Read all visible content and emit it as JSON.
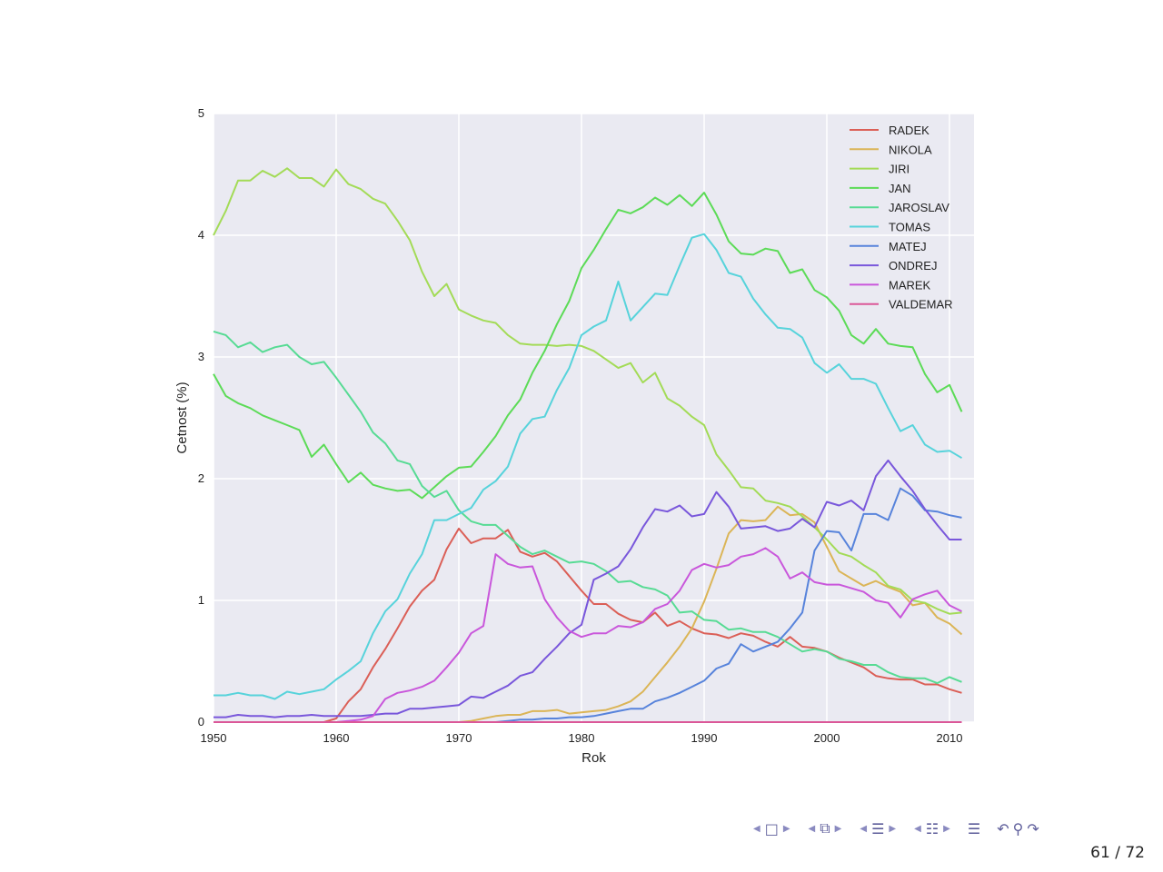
{
  "slide": {
    "page_current": "61",
    "page_sep": "/",
    "page_total": "72"
  },
  "nav": {
    "icons": [
      "frame-back-icon",
      "frame-icon",
      "frame-forward-icon",
      "subsection-back-icon",
      "subsection-icon",
      "subsection-forward-icon",
      "section-back-icon",
      "section-icon",
      "section-forward-icon",
      "presentation-back-icon",
      "presentation-icon",
      "presentation-forward-icon",
      "appendix-icon",
      "undo-icon",
      "search-icon",
      "redo-icon"
    ]
  },
  "chart_data": {
    "type": "line",
    "title": "",
    "xlabel": "Rok",
    "ylabel": "Cetnost (%)",
    "xlim": [
      1950,
      2012
    ],
    "ylim": [
      0,
      5
    ],
    "xticks": [
      1950,
      1960,
      1970,
      1980,
      1990,
      2000,
      2010
    ],
    "yticks": [
      0,
      1,
      2,
      3,
      4,
      5
    ],
    "grid": true,
    "legend_position": "top-right",
    "background": "#eaeaf2",
    "x": [
      1950,
      1951,
      1952,
      1953,
      1954,
      1955,
      1956,
      1957,
      1958,
      1959,
      1960,
      1961,
      1962,
      1963,
      1964,
      1965,
      1966,
      1967,
      1968,
      1969,
      1970,
      1971,
      1972,
      1973,
      1974,
      1975,
      1976,
      1977,
      1978,
      1979,
      1980,
      1981,
      1982,
      1983,
      1984,
      1985,
      1986,
      1987,
      1988,
      1989,
      1990,
      1991,
      1992,
      1993,
      1994,
      1995,
      1996,
      1997,
      1998,
      1999,
      2000,
      2001,
      2002,
      2003,
      2004,
      2005,
      2006,
      2007,
      2008,
      2009,
      2010,
      2011
    ],
    "series": [
      {
        "name": "RADEK",
        "color": "#db5f57",
        "values": [
          0,
          0,
          0,
          0,
          0,
          0,
          0,
          0,
          0,
          0,
          0.03,
          0.17,
          0.27,
          0.45,
          0.6,
          0.77,
          0.95,
          1.08,
          1.17,
          1.42,
          1.59,
          1.47,
          1.51,
          1.51,
          1.58,
          1.4,
          1.36,
          1.39,
          1.32,
          1.2,
          1.08,
          0.97,
          0.97,
          0.89,
          0.84,
          0.82,
          0.9,
          0.79,
          0.83,
          0.77,
          0.73,
          0.72,
          0.69,
          0.73,
          0.71,
          0.66,
          0.62,
          0.7,
          0.62,
          0.61,
          0.58,
          0.53,
          0.49,
          0.45,
          0.38,
          0.36,
          0.35,
          0.35,
          0.31,
          0.31,
          0.27,
          0.24
        ]
      },
      {
        "name": "NIKOLA",
        "color": "#dbb557",
        "values": [
          0,
          0,
          0,
          0,
          0,
          0,
          0,
          0,
          0,
          0,
          0,
          0,
          0,
          0,
          0,
          0,
          0,
          0,
          0,
          0,
          0,
          0.01,
          0.03,
          0.05,
          0.06,
          0.06,
          0.09,
          0.09,
          0.1,
          0.07,
          0.08,
          0.09,
          0.1,
          0.13,
          0.17,
          0.25,
          0.37,
          0.49,
          0.62,
          0.77,
          0.99,
          1.26,
          1.55,
          1.66,
          1.65,
          1.66,
          1.77,
          1.7,
          1.71,
          1.64,
          1.44,
          1.24,
          1.18,
          1.12,
          1.16,
          1.11,
          1.07,
          0.96,
          0.98,
          0.86,
          0.81,
          0.72
        ]
      },
      {
        "name": "JIRI",
        "color": "#a3db57",
        "values": [
          4.0,
          4.2,
          4.45,
          4.45,
          4.53,
          4.48,
          4.55,
          4.47,
          4.47,
          4.4,
          4.54,
          4.42,
          4.38,
          4.3,
          4.26,
          4.12,
          3.96,
          3.7,
          3.5,
          3.6,
          3.39,
          3.34,
          3.3,
          3.28,
          3.18,
          3.11,
          3.1,
          3.1,
          3.09,
          3.1,
          3.09,
          3.05,
          2.98,
          2.91,
          2.95,
          2.79,
          2.87,
          2.66,
          2.6,
          2.51,
          2.44,
          2.2,
          2.07,
          1.93,
          1.92,
          1.82,
          1.8,
          1.77,
          1.69,
          1.6,
          1.5,
          1.39,
          1.36,
          1.29,
          1.23,
          1.12,
          1.09,
          1.0,
          0.98,
          0.93,
          0.89,
          0.9
        ]
      },
      {
        "name": "JAN",
        "color": "#5cdb57",
        "values": [
          2.86,
          2.68,
          2.62,
          2.58,
          2.52,
          2.48,
          2.44,
          2.4,
          2.18,
          2.28,
          2.12,
          1.97,
          2.05,
          1.95,
          1.92,
          1.9,
          1.91,
          1.84,
          1.93,
          2.02,
          2.09,
          2.1,
          2.22,
          2.35,
          2.52,
          2.65,
          2.87,
          3.05,
          3.27,
          3.46,
          3.73,
          3.88,
          4.05,
          4.21,
          4.18,
          4.23,
          4.31,
          4.25,
          4.33,
          4.24,
          4.35,
          4.17,
          3.95,
          3.85,
          3.84,
          3.89,
          3.87,
          3.69,
          3.72,
          3.55,
          3.49,
          3.38,
          3.18,
          3.11,
          3.23,
          3.11,
          3.09,
          3.08,
          2.86,
          2.71,
          2.77,
          2.55
        ]
      },
      {
        "name": "JAROSLAV",
        "color": "#57db94",
        "values": [
          3.21,
          3.18,
          3.08,
          3.12,
          3.04,
          3.08,
          3.1,
          3.0,
          2.94,
          2.96,
          2.83,
          2.69,
          2.55,
          2.38,
          2.29,
          2.15,
          2.12,
          1.94,
          1.85,
          1.9,
          1.74,
          1.65,
          1.62,
          1.62,
          1.53,
          1.44,
          1.38,
          1.41,
          1.36,
          1.31,
          1.32,
          1.3,
          1.24,
          1.15,
          1.16,
          1.11,
          1.09,
          1.04,
          0.9,
          0.91,
          0.84,
          0.83,
          0.76,
          0.77,
          0.74,
          0.74,
          0.7,
          0.64,
          0.58,
          0.6,
          0.58,
          0.52,
          0.5,
          0.47,
          0.47,
          0.41,
          0.37,
          0.36,
          0.36,
          0.32,
          0.37,
          0.33
        ]
      },
      {
        "name": "TOMAS",
        "color": "#57d3db",
        "values": [
          0.22,
          0.22,
          0.24,
          0.22,
          0.22,
          0.19,
          0.25,
          0.23,
          0.25,
          0.27,
          0.35,
          0.42,
          0.5,
          0.73,
          0.91,
          1.01,
          1.22,
          1.38,
          1.66,
          1.66,
          1.71,
          1.76,
          1.91,
          1.98,
          2.1,
          2.37,
          2.49,
          2.51,
          2.73,
          2.91,
          3.18,
          3.25,
          3.3,
          3.62,
          3.3,
          3.41,
          3.52,
          3.51,
          3.75,
          3.98,
          4.01,
          3.88,
          3.69,
          3.66,
          3.48,
          3.35,
          3.24,
          3.23,
          3.16,
          2.95,
          2.87,
          2.94,
          2.82,
          2.82,
          2.78,
          2.58,
          2.39,
          2.44,
          2.28,
          2.22,
          2.23,
          2.17
        ]
      },
      {
        "name": "MATEJ",
        "color": "#5783db",
        "values": [
          0,
          0,
          0,
          0,
          0,
          0,
          0,
          0,
          0,
          0,
          0,
          0,
          0,
          0,
          0,
          0,
          0,
          0,
          0,
          0,
          0,
          0,
          0,
          0,
          0.01,
          0.02,
          0.02,
          0.03,
          0.03,
          0.04,
          0.04,
          0.05,
          0.07,
          0.09,
          0.11,
          0.11,
          0.17,
          0.2,
          0.24,
          0.29,
          0.34,
          0.44,
          0.48,
          0.64,
          0.58,
          0.62,
          0.66,
          0.77,
          0.9,
          1.41,
          1.57,
          1.56,
          1.41,
          1.71,
          1.71,
          1.66,
          1.92,
          1.86,
          1.74,
          1.73,
          1.7,
          1.68
        ]
      },
      {
        "name": "ONDREJ",
        "color": "#7957db",
        "values": [
          0.04,
          0.04,
          0.06,
          0.05,
          0.05,
          0.04,
          0.05,
          0.05,
          0.06,
          0.05,
          0.05,
          0.05,
          0.05,
          0.06,
          0.07,
          0.07,
          0.11,
          0.11,
          0.12,
          0.13,
          0.14,
          0.21,
          0.2,
          0.25,
          0.3,
          0.38,
          0.41,
          0.52,
          0.62,
          0.73,
          0.8,
          1.17,
          1.22,
          1.28,
          1.42,
          1.6,
          1.75,
          1.73,
          1.78,
          1.69,
          1.71,
          1.89,
          1.77,
          1.59,
          1.6,
          1.61,
          1.57,
          1.59,
          1.67,
          1.6,
          1.81,
          1.78,
          1.82,
          1.74,
          2.02,
          2.15,
          2.02,
          1.9,
          1.75,
          1.62,
          1.5,
          1.5
        ]
      },
      {
        "name": "MAREK",
        "color": "#c957db",
        "values": [
          0,
          0,
          0,
          0,
          0,
          0,
          0,
          0,
          0,
          0,
          0,
          0.01,
          0.02,
          0.05,
          0.19,
          0.24,
          0.26,
          0.29,
          0.34,
          0.45,
          0.57,
          0.73,
          0.79,
          1.38,
          1.3,
          1.27,
          1.28,
          1.01,
          0.86,
          0.75,
          0.7,
          0.73,
          0.73,
          0.79,
          0.78,
          0.82,
          0.93,
          0.97,
          1.08,
          1.25,
          1.3,
          1.27,
          1.29,
          1.36,
          1.38,
          1.43,
          1.36,
          1.18,
          1.23,
          1.15,
          1.13,
          1.13,
          1.1,
          1.07,
          1.0,
          0.98,
          0.86,
          1.01,
          1.05,
          1.08,
          0.96,
          0.91
        ]
      },
      {
        "name": "VALDEMAR",
        "color": "#db5798",
        "values": [
          0,
          0,
          0,
          0,
          0,
          0,
          0,
          0,
          0,
          0,
          0,
          0,
          0,
          0,
          0,
          0,
          0,
          0,
          0,
          0,
          0,
          0,
          0,
          0,
          0,
          0,
          0,
          0,
          0,
          0,
          0,
          0,
          0,
          0,
          0,
          0,
          0,
          0,
          0,
          0,
          0,
          0,
          0,
          0,
          0,
          0,
          0,
          0,
          0,
          0,
          0,
          0,
          0,
          0,
          0,
          0,
          0,
          0,
          0,
          0,
          0,
          0
        ]
      }
    ]
  }
}
